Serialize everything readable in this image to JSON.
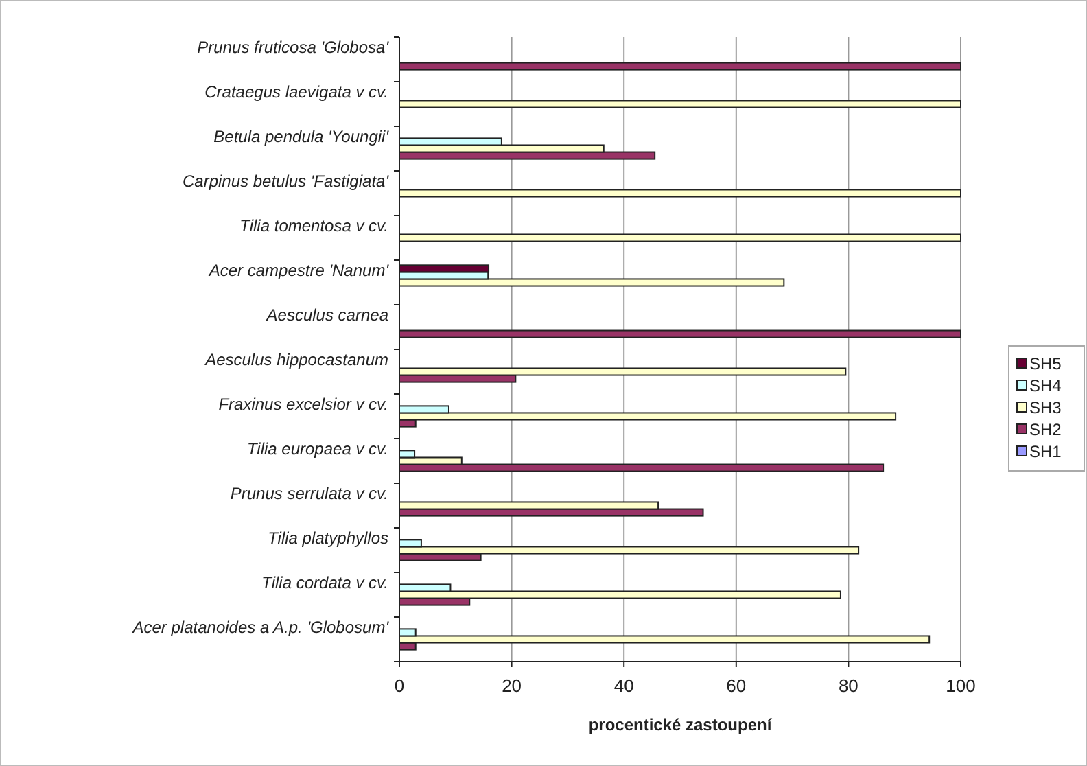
{
  "chart_data": {
    "type": "bar",
    "orientation": "horizontal",
    "xlabel": "procentické zastoupení",
    "categories": [
      "Prunus fruticosa 'Globosa'",
      "Crataegus laevigata v cv.",
      "Betula pendula 'Youngii'",
      "Carpinus betulus 'Fastigiata'",
      "Tilia tomentosa v cv.",
      "Acer campestre 'Nanum'",
      "Aesculus carnea",
      "Aesculus hippocastanum",
      "Fraxinus excelsior v cv.",
      "Tilia europaea v cv.",
      "Prunus serrulata v cv.",
      "Tilia platyphyllos",
      "Tilia cordata v cv.",
      "Acer platanoides a A.p. 'Globosum'"
    ],
    "series": [
      {
        "name": "SH1",
        "color": "#9999ff",
        "values": [
          0,
          0,
          0,
          0,
          0,
          0,
          0,
          0,
          0,
          0,
          0,
          0,
          0,
          0
        ]
      },
      {
        "name": "SH2",
        "color": "#993366",
        "values": [
          100,
          0,
          45.5,
          0,
          0,
          0,
          100,
          20.7,
          2.9,
          86.2,
          54.1,
          14.5,
          12.5,
          2.9
        ]
      },
      {
        "name": "SH3",
        "color": "#ffffcc",
        "values": [
          0,
          100,
          36.4,
          100,
          100,
          68.5,
          0,
          79.5,
          88.4,
          11.1,
          46.1,
          81.8,
          78.6,
          94.4
        ]
      },
      {
        "name": "SH4",
        "color": "#ccffff",
        "values": [
          0,
          0,
          18.2,
          0,
          0,
          15.8,
          0,
          0,
          8.8,
          2.7,
          0,
          3.9,
          9.1,
          2.9
        ]
      },
      {
        "name": "SH5",
        "color": "#660033",
        "values": [
          0,
          0,
          0,
          0,
          0,
          15.9,
          0,
          0,
          0,
          0,
          0,
          0,
          0,
          0
        ]
      }
    ],
    "xlim": [
      0,
      100
    ],
    "xticks": [
      0,
      20,
      40,
      60,
      80,
      100
    ],
    "grid": "x",
    "legend": "right"
  }
}
